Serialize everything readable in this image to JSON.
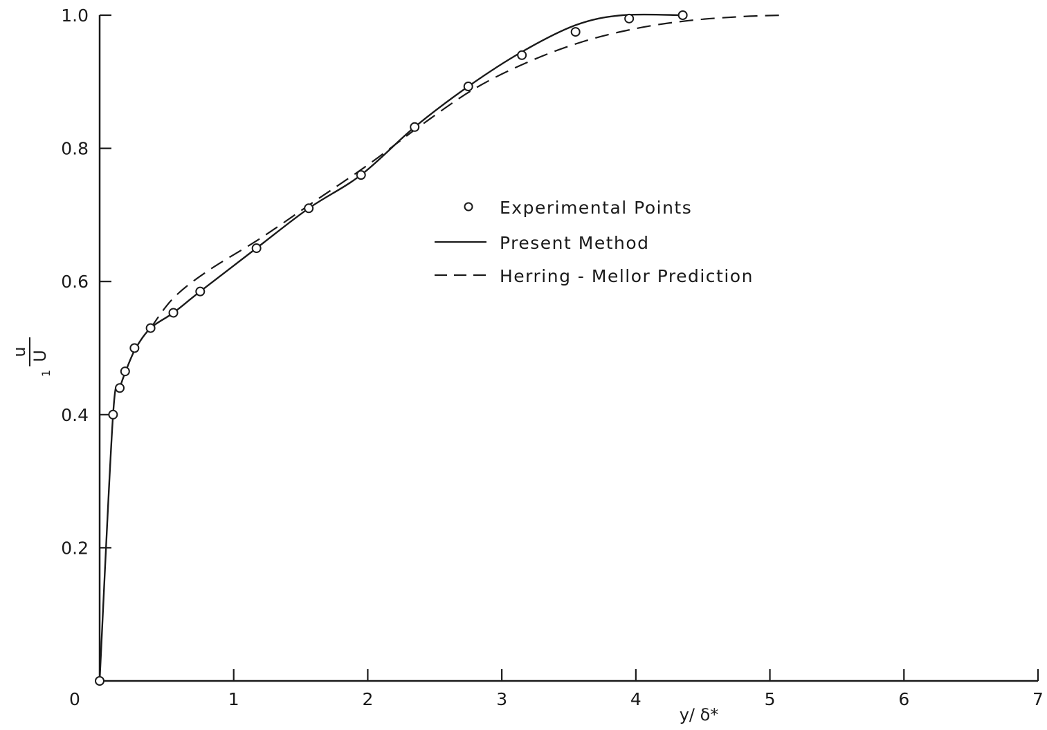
{
  "chart_data": {
    "type": "line",
    "title": "",
    "xlabel": "y/ δ*",
    "ylabel": {
      "numerator": "u",
      "denominator": "U",
      "subscript": "1"
    },
    "xlim": [
      0,
      7
    ],
    "ylim": [
      0,
      1.0
    ],
    "x_ticks": [
      0,
      1,
      2,
      3,
      4,
      5,
      6,
      7
    ],
    "y_ticks": [
      0.2,
      0.4,
      0.6,
      0.8,
      1.0
    ],
    "x_tick_labels": [
      "0",
      "1",
      "2",
      "3",
      "4",
      "5",
      "6",
      "7"
    ],
    "y_tick_labels": [
      "0.2",
      "0.4",
      "0.6",
      "0.8",
      "1.0"
    ],
    "grid": false,
    "legend_position": "center-right",
    "series": [
      {
        "name": "Experimental Points",
        "style": "markers",
        "marker": "open-circle",
        "points": [
          [
            0.0,
            0.0
          ],
          [
            0.1,
            0.4
          ],
          [
            0.15,
            0.44
          ],
          [
            0.19,
            0.465
          ],
          [
            0.26,
            0.5
          ],
          [
            0.38,
            0.53
          ],
          [
            0.55,
            0.553
          ],
          [
            0.75,
            0.585
          ],
          [
            1.17,
            0.65
          ],
          [
            1.56,
            0.71
          ],
          [
            1.95,
            0.76
          ],
          [
            2.35,
            0.832
          ],
          [
            2.75,
            0.893
          ],
          [
            3.15,
            0.94
          ],
          [
            3.55,
            0.975
          ],
          [
            3.95,
            0.995
          ],
          [
            4.35,
            1.0
          ]
        ]
      },
      {
        "name": "Present Method",
        "style": "solid",
        "points": [
          [
            0.0,
            0.0
          ],
          [
            0.1,
            0.4
          ],
          [
            0.15,
            0.44
          ],
          [
            0.2,
            0.468
          ],
          [
            0.27,
            0.5
          ],
          [
            0.38,
            0.53
          ],
          [
            0.55,
            0.553
          ],
          [
            0.75,
            0.585
          ],
          [
            1.17,
            0.65
          ],
          [
            1.56,
            0.71
          ],
          [
            1.95,
            0.76
          ],
          [
            2.35,
            0.832
          ],
          [
            2.75,
            0.893
          ],
          [
            3.15,
            0.945
          ],
          [
            3.55,
            0.985
          ],
          [
            3.9,
            1.0
          ],
          [
            4.35,
            1.0
          ]
        ]
      },
      {
        "name": "Herring - Mellor Prediction",
        "style": "dashed",
        "points": [
          [
            0.38,
            0.53
          ],
          [
            0.55,
            0.575
          ],
          [
            0.8,
            0.615
          ],
          [
            1.2,
            0.665
          ],
          [
            1.6,
            0.72
          ],
          [
            2.0,
            0.775
          ],
          [
            2.4,
            0.835
          ],
          [
            2.8,
            0.89
          ],
          [
            3.2,
            0.93
          ],
          [
            3.6,
            0.96
          ],
          [
            4.0,
            0.98
          ],
          [
            4.4,
            0.992
          ],
          [
            4.8,
            0.998
          ],
          [
            5.1,
            1.0
          ]
        ]
      }
    ]
  }
}
